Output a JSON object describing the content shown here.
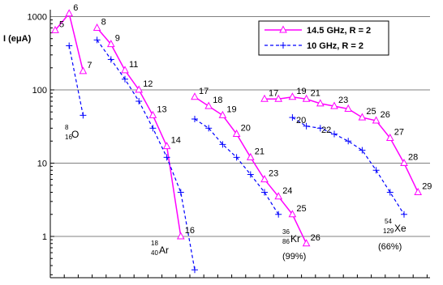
{
  "chart_data": {
    "type": "line",
    "ylabel": "I (eμA)",
    "yscale": "log",
    "ylim": [
      0.3,
      1000
    ],
    "yticks": [
      "1000",
      "100",
      "10",
      "1"
    ],
    "grid": true,
    "legend_position": "top-right",
    "series": [
      {
        "name": "14.5 GHz, R = 2",
        "color": "#ff00ff",
        "dash": "solid",
        "marker": "triangle",
        "groups": [
          {
            "points": [
              [
                0,
                650,
                "5"
              ],
              [
                1,
                1100,
                "6"
              ],
              [
                2,
                180,
                "7"
              ]
            ]
          },
          {
            "points": [
              [
                3,
                700,
                "8"
              ],
              [
                4,
                420,
                "9"
              ],
              [
                5,
                185,
                "11"
              ],
              [
                6,
                100,
                "12"
              ],
              [
                7,
                45,
                "13"
              ],
              [
                8,
                17,
                "14"
              ],
              [
                9,
                1,
                "16"
              ]
            ]
          },
          {
            "points": [
              [
                10,
                80,
                "17"
              ],
              [
                11,
                60,
                "18"
              ],
              [
                12,
                45,
                "19"
              ],
              [
                13,
                25,
                "20"
              ],
              [
                14,
                12,
                "21"
              ],
              [
                15,
                6,
                "23"
              ],
              [
                16,
                3.5,
                "24"
              ],
              [
                17,
                2,
                "25"
              ],
              [
                18,
                0.8,
                "26"
              ]
            ]
          },
          {
            "points": [
              [
                15,
                75,
                "17"
              ],
              [
                16,
                75,
                ""
              ],
              [
                17,
                80,
                "19"
              ],
              [
                18,
                75,
                "21"
              ],
              [
                19,
                65,
                ""
              ],
              [
                20,
                60,
                "23"
              ],
              [
                21,
                55,
                ""
              ],
              [
                22,
                42,
                "25"
              ],
              [
                23,
                38,
                "26"
              ],
              [
                24,
                22,
                "27"
              ],
              [
                25,
                10,
                "28"
              ],
              [
                26,
                4,
                "29"
              ]
            ]
          }
        ]
      },
      {
        "name": "10 GHz, R = 2",
        "color": "#0000ff",
        "dash": "dashed",
        "marker": "plus",
        "groups": [
          {
            "points": [
              [
                1,
                400
              ],
              [
                2,
                45
              ]
            ]
          },
          {
            "points": [
              [
                3,
                480
              ],
              [
                4,
                260
              ],
              [
                5,
                140
              ],
              [
                6,
                70
              ],
              [
                7,
                30
              ],
              [
                8,
                12
              ],
              [
                9,
                4
              ],
              [
                10,
                0.35
              ]
            ]
          },
          {
            "points": [
              [
                10,
                40
              ],
              [
                11,
                30
              ],
              [
                12,
                18
              ],
              [
                13,
                12
              ],
              [
                14,
                7
              ],
              [
                15,
                4
              ],
              [
                16,
                2
              ]
            ]
          },
          {
            "points": [
              [
                17,
                42
              ],
              [
                18,
                32
              ],
              [
                19,
                30
              ],
              [
                20,
                25
              ],
              [
                21,
                20
              ],
              [
                22,
                15
              ],
              [
                23,
                8
              ],
              [
                24,
                4
              ],
              [
                25,
                2
              ]
            ]
          }
        ]
      }
    ],
    "annotations": {
      "oxygen": "O",
      "oxygen_sup": "8",
      "oxygen_sub": "16",
      "argon": "Ar",
      "argon_sup": "18",
      "argon_sub": "40",
      "krypton": "Kr",
      "krypton_sup": "36",
      "krypton_sub": "86",
      "krypton_note": "(99%)",
      "xenon": "Xe",
      "xenon_sup": "54",
      "xenon_sub": "129",
      "xenon_note": "(66%)",
      "label_20_blue": "20",
      "label_22_blue": "22"
    }
  }
}
